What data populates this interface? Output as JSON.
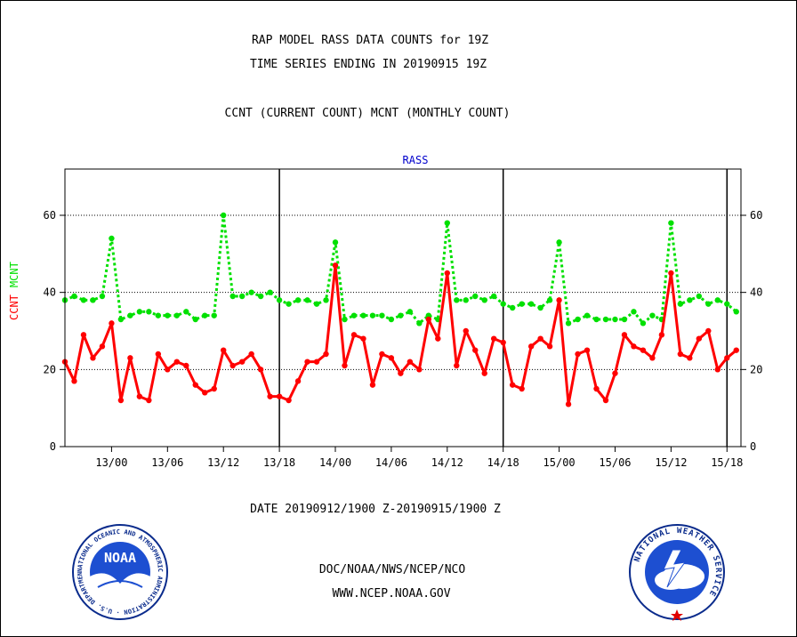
{
  "header": {
    "title_line1": "RAP MODEL RASS DATA COUNTS for 19Z",
    "title_line2": "TIME SERIES ENDING IN 20190915 19Z",
    "subtitle": "CCNT (CURRENT COUNT) MCNT (MONTHLY COUNT)"
  },
  "footer": {
    "date_range": "DATE 20190912/1900 Z-20190915/1900 Z",
    "org_line": "DOC/NOAA/NWS/NCEP/NCO",
    "url_line": "WWW.NCEP.NOAA.GOV"
  },
  "logos": {
    "noaa": {
      "text": "NOAA",
      "ring_text": "NATIONAL OCEANIC AND ATMOSPHERIC ADMINISTRATION · U.S. DEPARTMENT OF COMMERCE"
    },
    "nws": {
      "ring_text": "NATIONAL WEATHER SERVICE"
    }
  },
  "colors": {
    "ccnt": "#ff0000",
    "mcnt": "#00e000",
    "panel_title": "#0000cc",
    "footer_red": "#ff0000",
    "footer_blue": "#0000cc"
  },
  "chart_data": {
    "type": "line",
    "panel_title": "RASS",
    "ylabel_left": [
      "CCNT",
      "MCNT"
    ],
    "ylim": [
      0,
      72
    ],
    "yticks": [
      0,
      20,
      40,
      60
    ],
    "grid_y": [
      20,
      40,
      60
    ],
    "xlim": [
      0,
      72.5
    ],
    "x_ticks": [
      {
        "x": 5,
        "label": "13/00"
      },
      {
        "x": 11,
        "label": "13/06"
      },
      {
        "x": 17,
        "label": "13/12"
      },
      {
        "x": 23,
        "label": "13/18"
      },
      {
        "x": 29,
        "label": "14/00"
      },
      {
        "x": 35,
        "label": "14/06"
      },
      {
        "x": 41,
        "label": "14/12"
      },
      {
        "x": 47,
        "label": "14/18"
      },
      {
        "x": 53,
        "label": "15/00"
      },
      {
        "x": 59,
        "label": "15/06"
      },
      {
        "x": 65,
        "label": "15/12"
      },
      {
        "x": 71,
        "label": "15/18"
      }
    ],
    "day_lines_x": [
      23,
      47,
      71
    ],
    "series": [
      {
        "name": "CCNT",
        "style": "solid",
        "values": [
          22,
          17,
          29,
          23,
          26,
          32,
          12,
          23,
          13,
          12,
          24,
          20,
          22,
          21,
          16,
          14,
          15,
          25,
          21,
          22,
          24,
          20,
          13,
          13,
          12,
          17,
          22,
          22,
          24,
          47,
          21,
          29,
          28,
          16,
          24,
          23,
          19,
          22,
          20,
          33,
          28,
          45,
          21,
          30,
          25,
          19,
          28,
          27,
          16,
          15,
          26,
          28,
          26,
          38,
          11,
          24,
          25,
          15,
          12,
          19,
          29,
          26,
          25,
          23,
          29,
          45,
          24,
          23,
          28,
          30,
          20,
          23,
          25
        ]
      },
      {
        "name": "MCNT",
        "style": "dotted",
        "values": [
          38,
          39,
          38,
          38,
          39,
          54,
          33,
          34,
          35,
          35,
          34,
          34,
          34,
          35,
          33,
          34,
          34,
          60,
          39,
          39,
          40,
          39,
          40,
          38,
          37,
          38,
          38,
          37,
          38,
          53,
          33,
          34,
          34,
          34,
          34,
          33,
          34,
          35,
          32,
          34,
          33,
          58,
          38,
          38,
          39,
          38,
          39,
          37,
          36,
          37,
          37,
          36,
          38,
          53,
          32,
          33,
          34,
          33,
          33,
          33,
          33,
          35,
          32,
          34,
          33,
          58,
          37,
          38,
          39,
          37,
          38,
          37,
          35
        ]
      }
    ]
  }
}
